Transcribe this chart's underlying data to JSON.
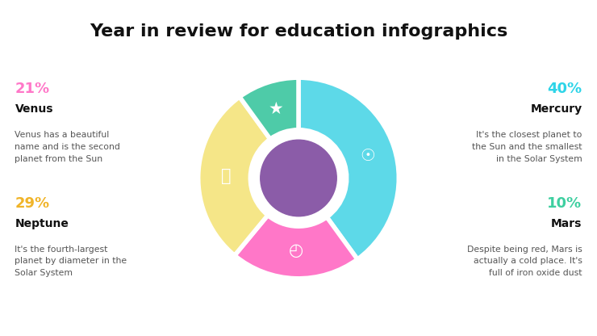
{
  "title": "Year in review for education infographics",
  "title_fontsize": 16,
  "background_color": "#ffffff",
  "center_color": "#8b5ca8",
  "wedges": [
    {
      "pct": 40,
      "color": "#5dd9e8",
      "label": "Mercury"
    },
    {
      "pct": 21,
      "color": "#ff77c8",
      "label": "Venus"
    },
    {
      "pct": 29,
      "color": "#f5e688",
      "label": "Neptune"
    },
    {
      "pct": 10,
      "color": "#4ecba8",
      "label": "Mars"
    }
  ],
  "left_blocks": [
    {
      "pct_text": "21%",
      "pct_color": "#ff77c8",
      "name": "Venus",
      "desc": "Venus has a beautiful\nname and is the second\nplanet from the Sun",
      "align": "left"
    },
    {
      "pct_text": "29%",
      "pct_color": "#f0b429",
      "name": "Neptune",
      "desc": "It's the fourth-largest\nplanet by diameter in the\nSolar System",
      "align": "left"
    }
  ],
  "right_blocks": [
    {
      "pct_text": "40%",
      "pct_color": "#2dd4e8",
      "name": "Mercury",
      "desc": "It's the closest planet to\nthe Sun and the smallest\nin the Solar System",
      "align": "right"
    },
    {
      "pct_text": "10%",
      "pct_color": "#3ecfa0",
      "name": "Mars",
      "desc": "Despite being red, Mars is\nactually a cold place. It's\nfull of iron oxide dust",
      "align": "right"
    }
  ]
}
